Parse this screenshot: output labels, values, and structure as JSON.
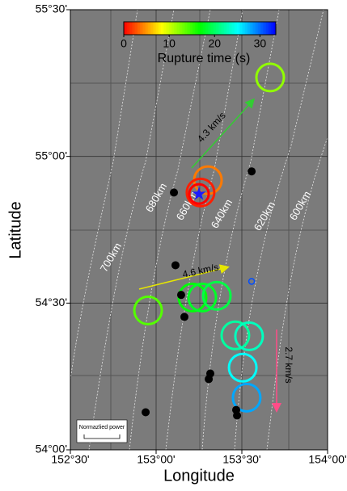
{
  "map": {
    "xlabel": "Longitude",
    "ylabel": "Latitude",
    "xlim": [
      152.5,
      154.0
    ],
    "ylim": [
      54.0,
      55.5
    ],
    "xticks": [
      {
        "value": 152.5,
        "label": "152°30'"
      },
      {
        "value": 153.0,
        "label": "153°00'"
      },
      {
        "value": 153.5,
        "label": "153°30'"
      },
      {
        "value": 154.0,
        "label": "154°00'"
      }
    ],
    "yticks": [
      {
        "value": 54.0,
        "label": "54°00'"
      },
      {
        "value": 54.5,
        "label": "54°30'"
      },
      {
        "value": 55.0,
        "label": "55°00'"
      },
      {
        "value": 55.5,
        "label": "55°30'"
      }
    ],
    "colorbar": {
      "label": "Rupture time (s)",
      "clim": [
        0,
        33.5
      ],
      "ticks": [
        0,
        10,
        20,
        30
      ]
    },
    "events": [
      {
        "lon": 153.665,
        "lat": 55.269,
        "time": 12
      },
      {
        "lon": 153.302,
        "lat": 54.919,
        "time": 4
      },
      {
        "lon": 153.259,
        "lat": 54.877,
        "time": 1
      },
      {
        "lon": 153.25,
        "lat": 54.872,
        "time": 0
      },
      {
        "lon": 152.953,
        "lat": 54.475,
        "time": 14
      },
      {
        "lon": 153.212,
        "lat": 54.519,
        "time": 17
      },
      {
        "lon": 153.269,
        "lat": 54.519,
        "time": 18
      },
      {
        "lon": 153.354,
        "lat": 54.525,
        "time": 19
      },
      {
        "lon": 153.462,
        "lat": 54.39,
        "time": 22
      },
      {
        "lon": 153.542,
        "lat": 54.387,
        "time": 23
      },
      {
        "lon": 153.505,
        "lat": 54.28,
        "time": 25
      },
      {
        "lon": 153.528,
        "lat": 54.178,
        "time": 28
      }
    ],
    "minor_events": [
      {
        "lon": 153.557,
        "lat": 54.574,
        "time": 31
      }
    ],
    "aftershocks": [
      {
        "lon": 153.557,
        "lat": 54.949
      },
      {
        "lon": 153.104,
        "lat": 54.877
      },
      {
        "lon": 153.113,
        "lat": 54.629
      },
      {
        "lon": 153.146,
        "lat": 54.528
      },
      {
        "lon": 153.165,
        "lat": 54.453
      },
      {
        "lon": 153.316,
        "lat": 54.26
      },
      {
        "lon": 153.307,
        "lat": 54.241
      },
      {
        "lon": 152.939,
        "lat": 54.128
      },
      {
        "lon": 153.467,
        "lat": 54.136
      },
      {
        "lon": 153.472,
        "lat": 54.117
      }
    ],
    "epicenter": {
      "lon": 153.25,
      "lat": 54.872
    },
    "contour_labels": [
      "600km",
      "620km",
      "640km",
      "660km",
      "680km",
      "700km"
    ],
    "velocity_labels": [
      "4.3 km/s",
      "4.6 km/s",
      "2.7 km/s"
    ],
    "legend_label": "Normazlied power"
  }
}
